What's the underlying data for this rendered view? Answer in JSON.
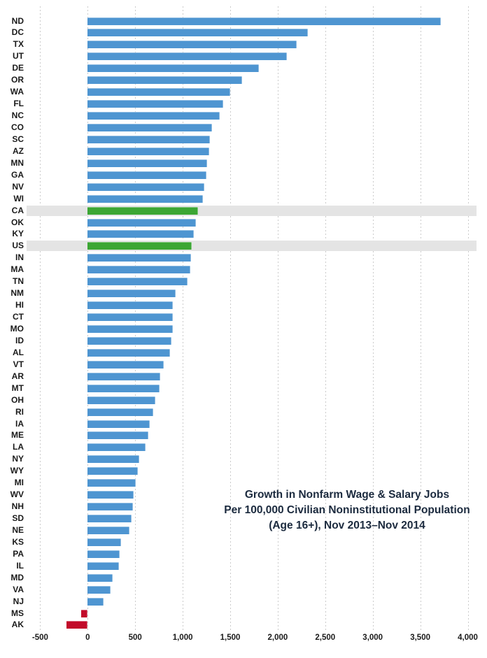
{
  "chart_data": {
    "type": "bar",
    "orientation": "horizontal",
    "title_lines": [
      "Growth in Nonfarm Wage & Salary Jobs",
      "Per 100,000 Civilian Noninstitutional Population",
      "(Age 16+), Nov 2013–Nov 2014"
    ],
    "xlabel": "",
    "ylabel": "",
    "xlim": [
      -500,
      4000
    ],
    "grid": "vertical-dashed",
    "legend": "none",
    "x_ticks": [
      -500,
      0,
      500,
      1000,
      1500,
      2000,
      2500,
      3000,
      3500,
      4000
    ],
    "x_tick_labels": [
      "-500",
      "0",
      "500",
      "1,000",
      "1,500",
      "2,000",
      "2,500",
      "3,000",
      "3,500",
      "4,000"
    ],
    "categories": [
      "ND",
      "DC",
      "TX",
      "UT",
      "DE",
      "OR",
      "WA",
      "FL",
      "NC",
      "CO",
      "SC",
      "AZ",
      "MN",
      "GA",
      "NV",
      "WI",
      "CA",
      "OK",
      "KY",
      "US",
      "IN",
      "MA",
      "TN",
      "NM",
      "HI",
      "CT",
      "MO",
      "ID",
      "AL",
      "VT",
      "AR",
      "MT",
      "OH",
      "RI",
      "IA",
      "ME",
      "LA",
      "NY",
      "WY",
      "MI",
      "WV",
      "NH",
      "SD",
      "NE",
      "KS",
      "PA",
      "IL",
      "MD",
      "VA",
      "NJ",
      "MS",
      "AK"
    ],
    "values": [
      3720,
      2320,
      2200,
      2100,
      1800,
      1625,
      1500,
      1430,
      1390,
      1310,
      1290,
      1280,
      1260,
      1250,
      1230,
      1210,
      1160,
      1140,
      1120,
      1095,
      1090,
      1080,
      1050,
      925,
      900,
      900,
      895,
      880,
      870,
      800,
      765,
      760,
      715,
      690,
      650,
      640,
      610,
      540,
      530,
      505,
      485,
      480,
      460,
      440,
      350,
      335,
      330,
      265,
      240,
      170,
      -70,
      -220
    ],
    "highlighted_rows": [
      "CA",
      "US"
    ],
    "colors": {
      "bar_blue": "#4E95D1",
      "bar_highlight_green": "#3CA634",
      "bar_negative_red": "#C20B2A",
      "highlight_band_gray": "#E4E4E4",
      "gridline_gray": "#CBCBCB",
      "axis_text": "#1A1A1A",
      "title_navy": "#1B2A3E",
      "background": "#FFFFFF"
    }
  }
}
